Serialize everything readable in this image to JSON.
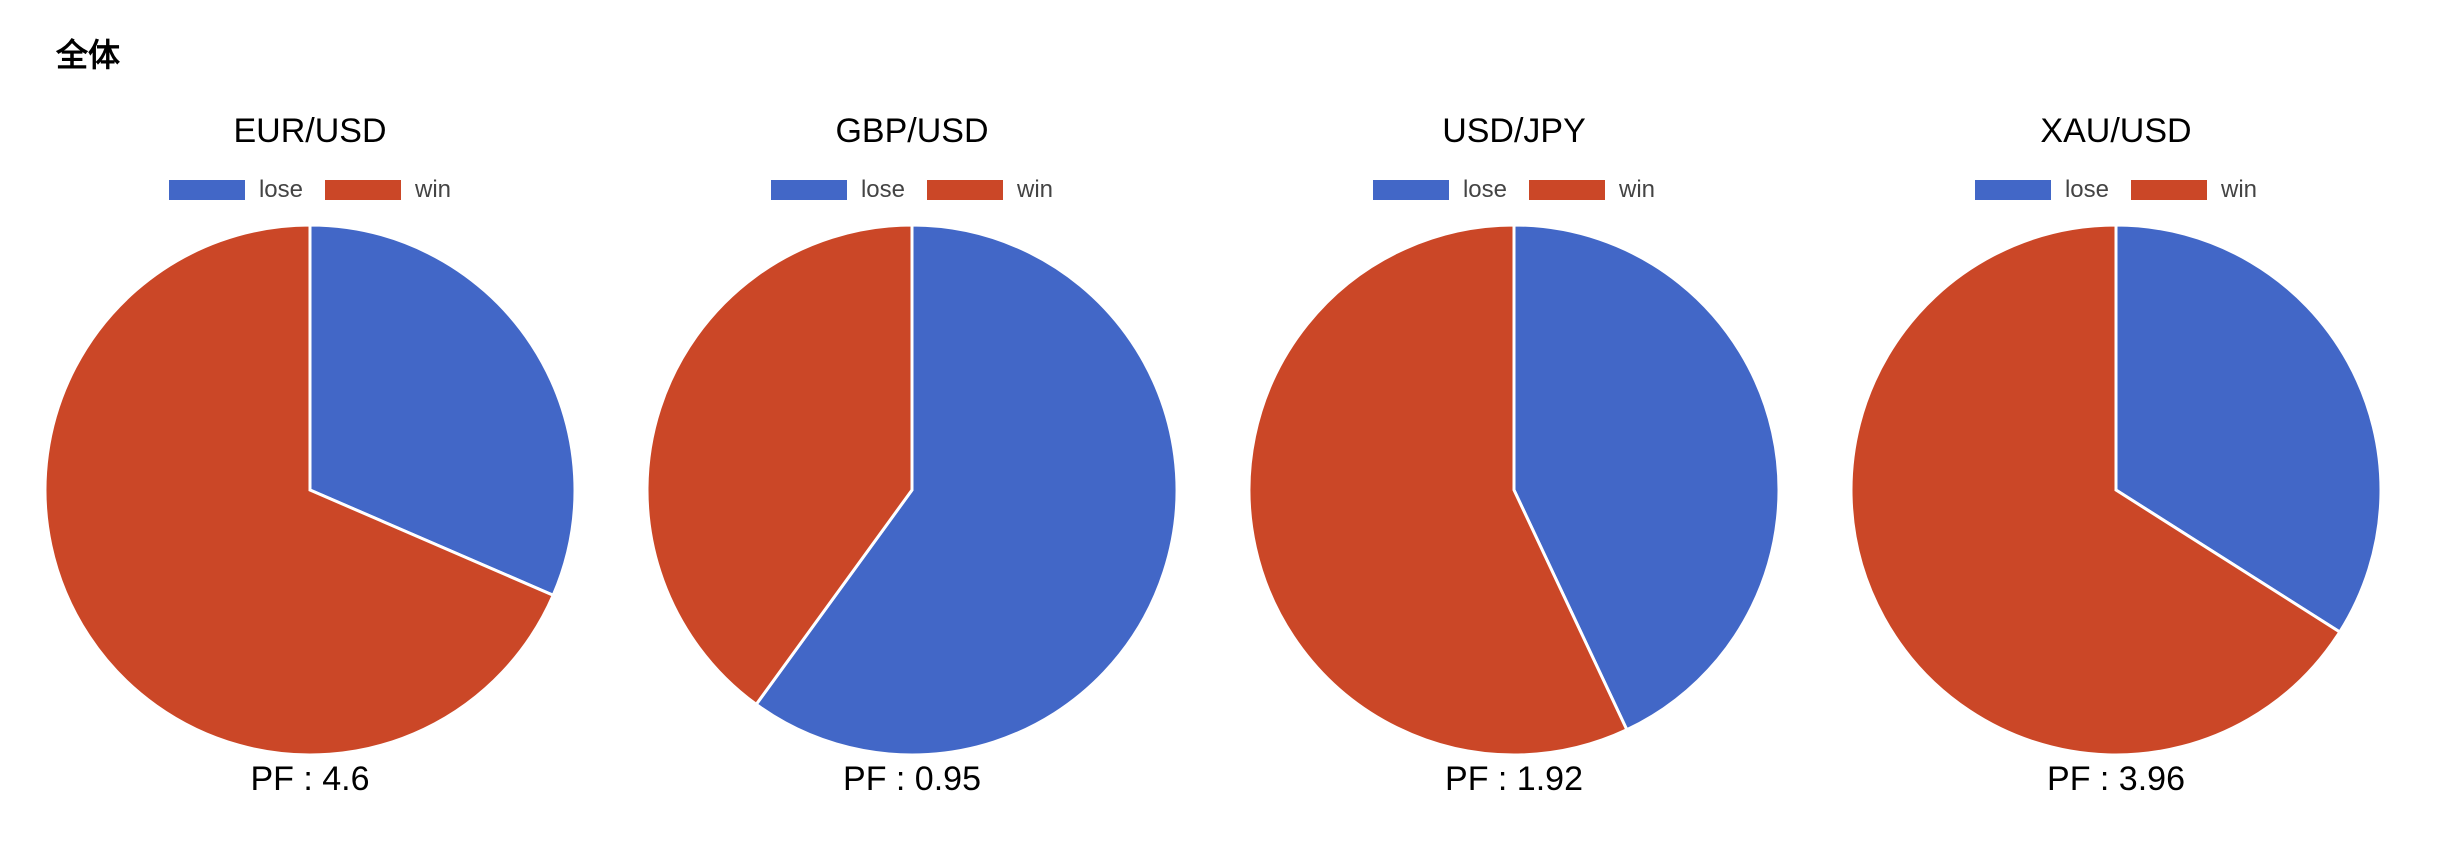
{
  "section": {
    "title": "全体"
  },
  "legend": {
    "lose_label": "lose",
    "win_label": "win",
    "lose_color": "#4267c7",
    "win_color": "#cb4727"
  },
  "chart_data": [
    {
      "type": "pie",
      "title": "EUR/USD",
      "categories": [
        "lose",
        "win"
      ],
      "values": [
        31.5,
        68.5
      ],
      "colors": [
        "#4267c7",
        "#cb4727"
      ],
      "legend": "top",
      "footer": "PF : 4.6"
    },
    {
      "type": "pie",
      "title": "GBP/USD",
      "categories": [
        "lose",
        "win"
      ],
      "values": [
        60,
        40
      ],
      "colors": [
        "#4267c7",
        "#cb4727"
      ],
      "legend": "top",
      "footer": "PF : 0.95"
    },
    {
      "type": "pie",
      "title": "USD/JPY",
      "categories": [
        "lose",
        "win"
      ],
      "values": [
        43,
        57
      ],
      "colors": [
        "#4267c7",
        "#cb4727"
      ],
      "legend": "top",
      "footer": "PF : 1.92"
    },
    {
      "type": "pie",
      "title": "XAU/USD",
      "categories": [
        "lose",
        "win"
      ],
      "values": [
        34,
        66
      ],
      "colors": [
        "#4267c7",
        "#cb4727"
      ],
      "legend": "top",
      "footer": "PF : 3.96"
    }
  ]
}
